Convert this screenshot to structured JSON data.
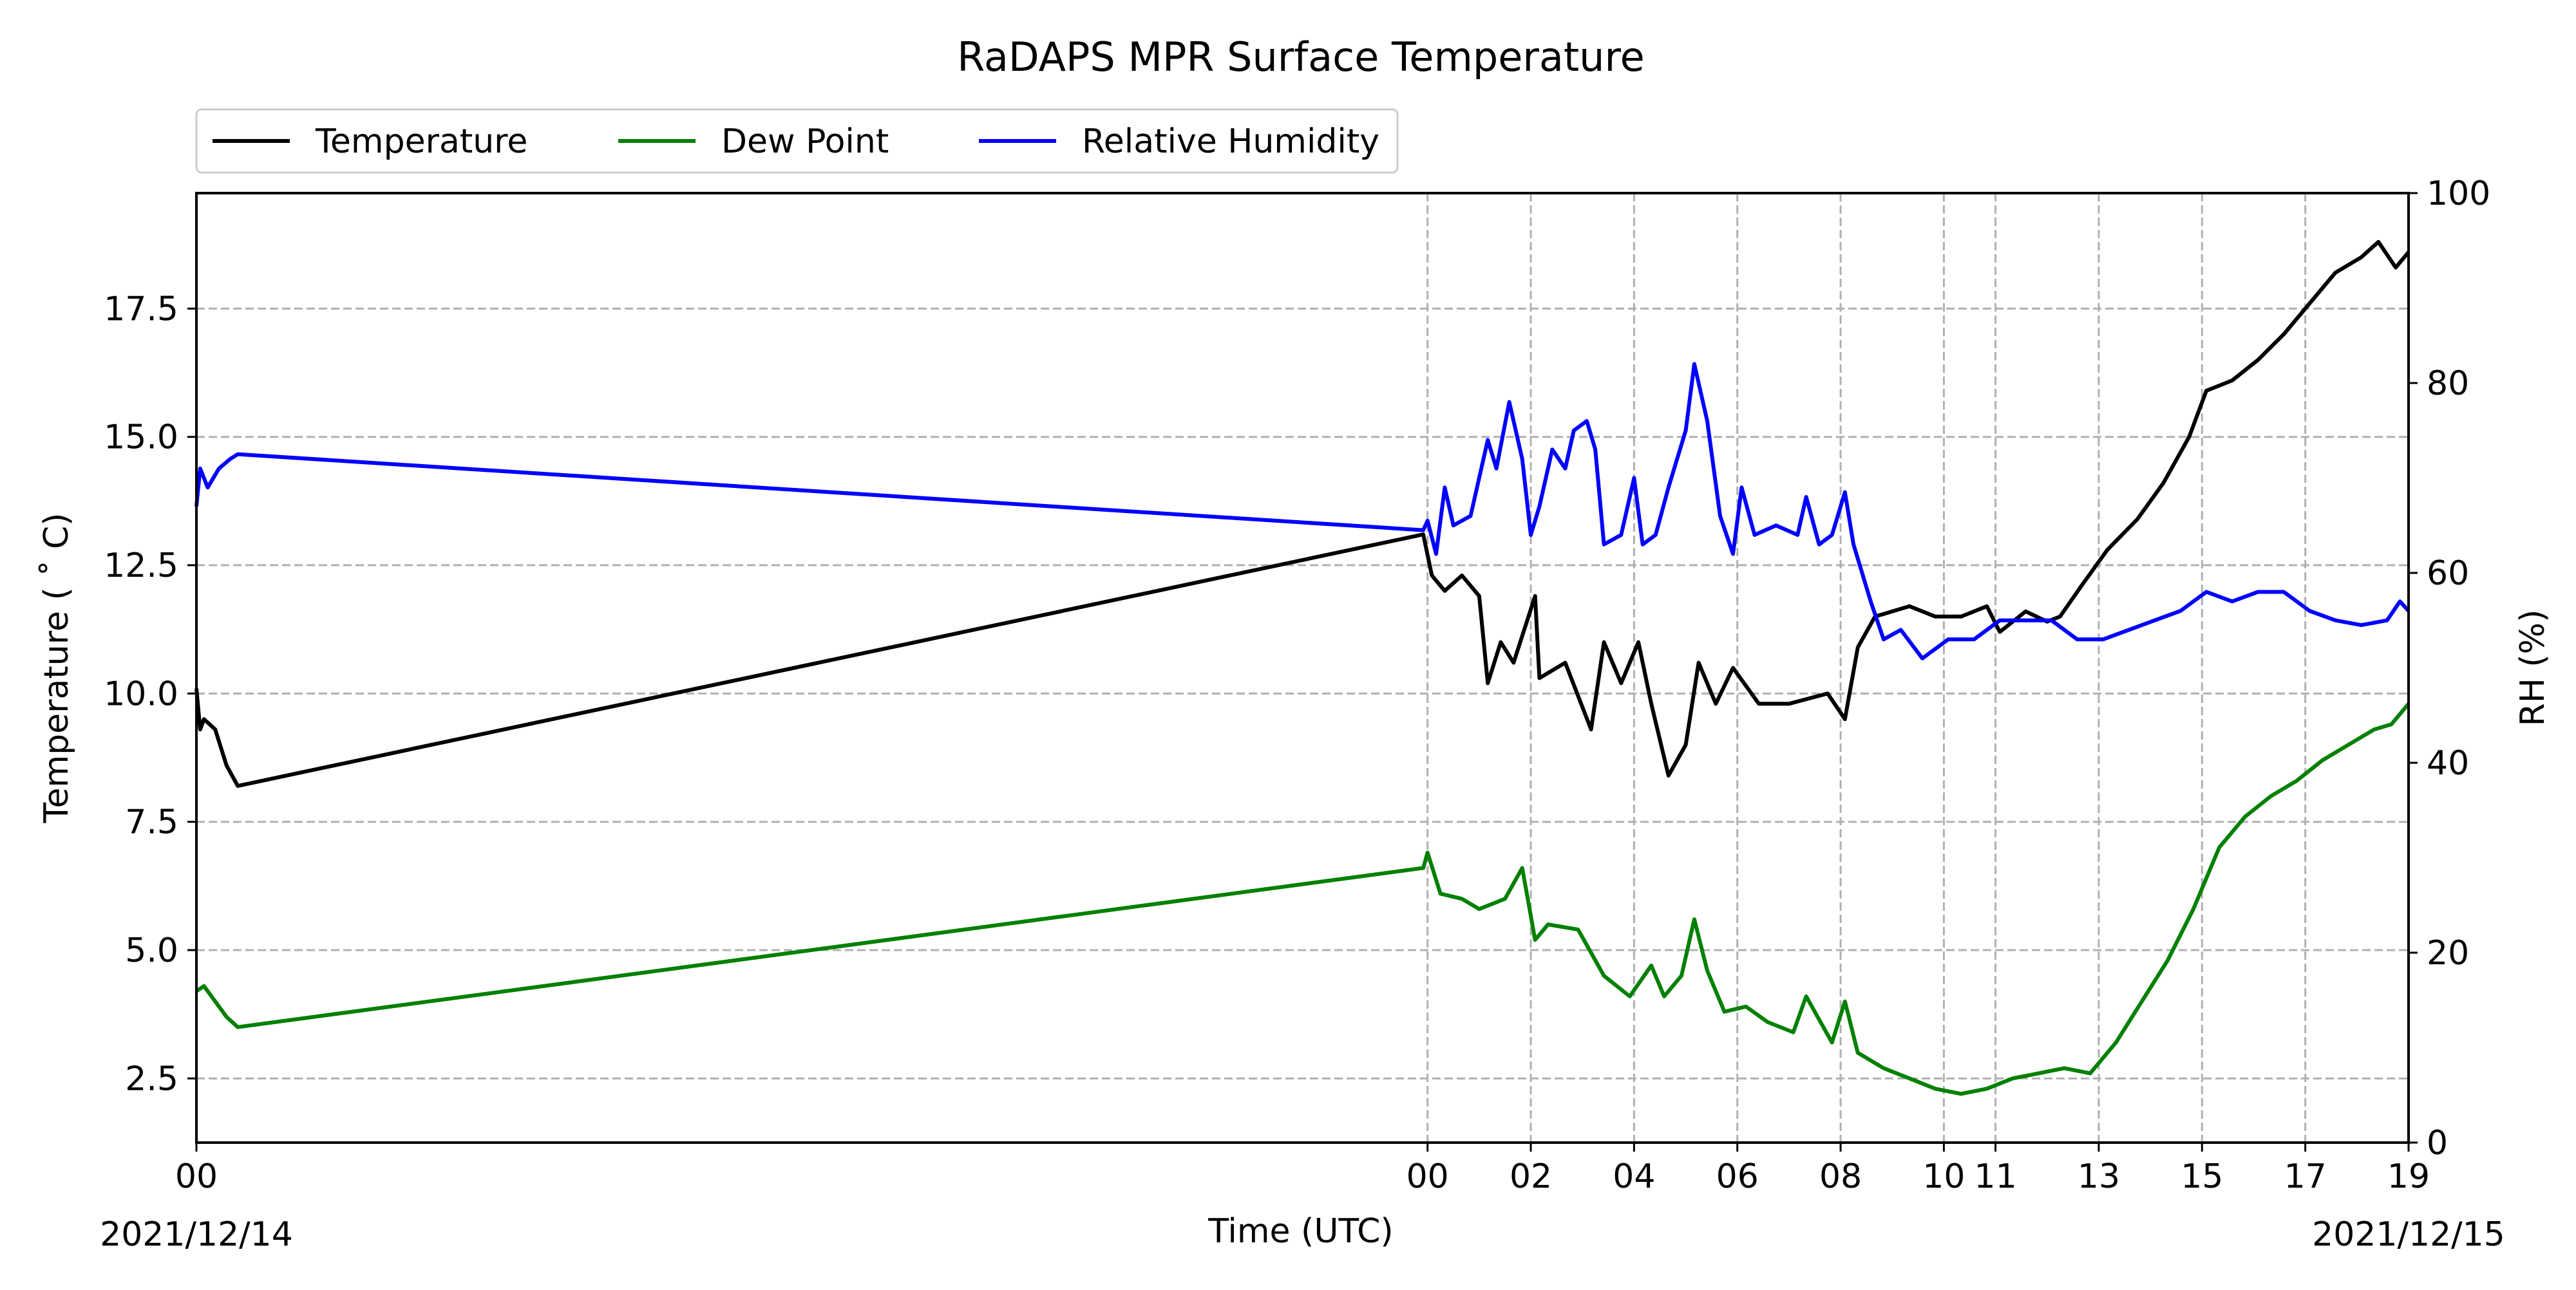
{
  "chart_data": {
    "type": "line",
    "title": "RaDAPS MPR Surface Temperature",
    "xlabel": "Time (UTC)",
    "ylabel_left": "Temperature ($^\\circ$C)",
    "ylabel_left_display": "Temperature ( ˚ C)",
    "ylabel_right": "RH (%)",
    "date_start_label": "2021/12/14",
    "date_end_label": "2021/12/15",
    "ylim_left": [
      1.25,
      19.75
    ],
    "ylim_right": [
      0,
      100
    ],
    "grid": true,
    "legend_position": "top-left, outside above plot",
    "x_ticks": [
      {
        "x": "2021-12-14 00:00",
        "label": "00"
      },
      {
        "x": "2021-12-15 00:00",
        "label": "00"
      },
      {
        "x": "2021-12-15 02:00",
        "label": "02"
      },
      {
        "x": "2021-12-15 04:00",
        "label": "04"
      },
      {
        "x": "2021-12-15 06:00",
        "label": "06"
      },
      {
        "x": "2021-12-15 08:00",
        "label": "08"
      },
      {
        "x": "2021-12-15 10:00",
        "label": "10"
      },
      {
        "x": "2021-12-15 11:00",
        "label": "11"
      },
      {
        "x": "2021-12-15 13:00",
        "label": "13"
      },
      {
        "x": "2021-12-15 15:00",
        "label": "15"
      },
      {
        "x": "2021-12-15 17:00",
        "label": "17"
      },
      {
        "x": "2021-12-15 19:00",
        "label": "19"
      }
    ],
    "y_ticks_left": [
      2.5,
      5.0,
      7.5,
      10.0,
      12.5,
      15.0,
      17.5
    ],
    "y_ticks_left_labels": [
      "2.5",
      "5.0",
      "7.5",
      "10.0",
      "12.5",
      "15.0",
      "17.5"
    ],
    "y_ticks_right": [
      0,
      20,
      40,
      60,
      80,
      100
    ],
    "y_ticks_right_labels": [
      "0",
      "20",
      "40",
      "60",
      "80",
      "100"
    ],
    "series": [
      {
        "name": "Temperature",
        "color": "#000000",
        "axis": "left",
        "points": [
          [
            "2021-12-14 00:00",
            10.1
          ],
          [
            "2021-12-14 00:05",
            9.3
          ],
          [
            "2021-12-14 00:10",
            9.5
          ],
          [
            "2021-12-14 00:25",
            9.3
          ],
          [
            "2021-12-14 00:40",
            8.6
          ],
          [
            "2021-12-14 00:55",
            8.2
          ],
          [
            "2021-12-14 23:55",
            13.1
          ],
          [
            "2021-12-15 00:05",
            12.3
          ],
          [
            "2021-12-15 00:20",
            12.0
          ],
          [
            "2021-12-15 00:40",
            12.3
          ],
          [
            "2021-12-15 01:00",
            11.9
          ],
          [
            "2021-12-15 01:10",
            10.2
          ],
          [
            "2021-12-15 01:25",
            11.0
          ],
          [
            "2021-12-15 01:40",
            10.6
          ],
          [
            "2021-12-15 02:05",
            11.9
          ],
          [
            "2021-12-15 02:10",
            10.3
          ],
          [
            "2021-12-15 02:40",
            10.6
          ],
          [
            "2021-12-15 03:10",
            9.3
          ],
          [
            "2021-12-15 03:25",
            11.0
          ],
          [
            "2021-12-15 03:45",
            10.2
          ],
          [
            "2021-12-15 04:05",
            11.0
          ],
          [
            "2021-12-15 04:20",
            9.8
          ],
          [
            "2021-12-15 04:40",
            8.4
          ],
          [
            "2021-12-15 05:00",
            9.0
          ],
          [
            "2021-12-15 05:15",
            10.6
          ],
          [
            "2021-12-15 05:35",
            9.8
          ],
          [
            "2021-12-15 05:55",
            10.5
          ],
          [
            "2021-12-15 06:25",
            9.8
          ],
          [
            "2021-12-15 07:00",
            9.8
          ],
          [
            "2021-12-15 07:45",
            10.0
          ],
          [
            "2021-12-15 08:05",
            9.5
          ],
          [
            "2021-12-15 08:20",
            10.9
          ],
          [
            "2021-12-15 08:40",
            11.5
          ],
          [
            "2021-12-15 09:20",
            11.7
          ],
          [
            "2021-12-15 09:50",
            11.5
          ],
          [
            "2021-12-15 10:20",
            11.5
          ],
          [
            "2021-12-15 10:50",
            11.7
          ],
          [
            "2021-12-15 11:05",
            11.2
          ],
          [
            "2021-12-15 11:35",
            11.6
          ],
          [
            "2021-12-15 12:00",
            11.4
          ],
          [
            "2021-12-15 12:15",
            11.5
          ],
          [
            "2021-12-15 12:40",
            12.1
          ],
          [
            "2021-12-15 13:10",
            12.8
          ],
          [
            "2021-12-15 13:45",
            13.4
          ],
          [
            "2021-12-15 14:15",
            14.1
          ],
          [
            "2021-12-15 14:45",
            15.0
          ],
          [
            "2021-12-15 15:05",
            15.9
          ],
          [
            "2021-12-15 15:35",
            16.1
          ],
          [
            "2021-12-15 16:05",
            16.5
          ],
          [
            "2021-12-15 16:35",
            17.0
          ],
          [
            "2021-12-15 17:05",
            17.6
          ],
          [
            "2021-12-15 17:35",
            18.2
          ],
          [
            "2021-12-15 18:05",
            18.5
          ],
          [
            "2021-12-15 18:25",
            18.8
          ],
          [
            "2021-12-15 18:45",
            18.3
          ],
          [
            "2021-12-15 19:00",
            18.6
          ]
        ]
      },
      {
        "name": "Dew Point",
        "color": "#008000",
        "axis": "left",
        "points": [
          [
            "2021-12-14 00:00",
            4.2
          ],
          [
            "2021-12-14 00:10",
            4.3
          ],
          [
            "2021-12-14 00:25",
            4.0
          ],
          [
            "2021-12-14 00:40",
            3.7
          ],
          [
            "2021-12-14 00:55",
            3.5
          ],
          [
            "2021-12-14 23:55",
            6.6
          ],
          [
            "2021-12-15 00:00",
            6.9
          ],
          [
            "2021-12-15 00:15",
            6.1
          ],
          [
            "2021-12-15 00:40",
            6.0
          ],
          [
            "2021-12-15 01:00",
            5.8
          ],
          [
            "2021-12-15 01:30",
            6.0
          ],
          [
            "2021-12-15 01:50",
            6.6
          ],
          [
            "2021-12-15 02:05",
            5.2
          ],
          [
            "2021-12-15 02:20",
            5.5
          ],
          [
            "2021-12-15 02:55",
            5.4
          ],
          [
            "2021-12-15 03:25",
            4.5
          ],
          [
            "2021-12-15 03:55",
            4.1
          ],
          [
            "2021-12-15 04:20",
            4.7
          ],
          [
            "2021-12-15 04:35",
            4.1
          ],
          [
            "2021-12-15 04:55",
            4.5
          ],
          [
            "2021-12-15 05:10",
            5.6
          ],
          [
            "2021-12-15 05:25",
            4.6
          ],
          [
            "2021-12-15 05:45",
            3.8
          ],
          [
            "2021-12-15 06:10",
            3.9
          ],
          [
            "2021-12-15 06:35",
            3.6
          ],
          [
            "2021-12-15 07:05",
            3.4
          ],
          [
            "2021-12-15 07:20",
            4.1
          ],
          [
            "2021-12-15 07:50",
            3.2
          ],
          [
            "2021-12-15 08:05",
            4.0
          ],
          [
            "2021-12-15 08:20",
            3.0
          ],
          [
            "2021-12-15 08:50",
            2.7
          ],
          [
            "2021-12-15 09:20",
            2.5
          ],
          [
            "2021-12-15 09:50",
            2.3
          ],
          [
            "2021-12-15 10:20",
            2.2
          ],
          [
            "2021-12-15 10:50",
            2.3
          ],
          [
            "2021-12-15 11:20",
            2.5
          ],
          [
            "2021-12-15 11:50",
            2.6
          ],
          [
            "2021-12-15 12:20",
            2.7
          ],
          [
            "2021-12-15 12:50",
            2.6
          ],
          [
            "2021-12-15 13:20",
            3.2
          ],
          [
            "2021-12-15 13:50",
            4.0
          ],
          [
            "2021-12-15 14:20",
            4.8
          ],
          [
            "2021-12-15 14:50",
            5.8
          ],
          [
            "2021-12-15 15:20",
            7.0
          ],
          [
            "2021-12-15 15:50",
            7.6
          ],
          [
            "2021-12-15 16:20",
            8.0
          ],
          [
            "2021-12-15 16:50",
            8.3
          ],
          [
            "2021-12-15 17:20",
            8.7
          ],
          [
            "2021-12-15 17:50",
            9.0
          ],
          [
            "2021-12-15 18:20",
            9.3
          ],
          [
            "2021-12-15 18:40",
            9.4
          ],
          [
            "2021-12-15 19:00",
            9.8
          ]
        ]
      },
      {
        "name": "Relative Humidity",
        "color": "#0000ff",
        "axis": "right",
        "points": [
          [
            "2021-12-14 00:00",
            67
          ],
          [
            "2021-12-14 00:05",
            71
          ],
          [
            "2021-12-14 00:15",
            69
          ],
          [
            "2021-12-14 00:30",
            71
          ],
          [
            "2021-12-14 00:45",
            72
          ],
          [
            "2021-12-14 00:55",
            72.5
          ],
          [
            "2021-12-14 23:55",
            64.5
          ],
          [
            "2021-12-15 00:00",
            65.5
          ],
          [
            "2021-12-15 00:10",
            62
          ],
          [
            "2021-12-15 00:20",
            69
          ],
          [
            "2021-12-15 00:30",
            65
          ],
          [
            "2021-12-15 00:50",
            66
          ],
          [
            "2021-12-15 01:10",
            74
          ],
          [
            "2021-12-15 01:20",
            71
          ],
          [
            "2021-12-15 01:35",
            78
          ],
          [
            "2021-12-15 01:50",
            72
          ],
          [
            "2021-12-15 02:00",
            64
          ],
          [
            "2021-12-15 02:10",
            67
          ],
          [
            "2021-12-15 02:25",
            73
          ],
          [
            "2021-12-15 02:40",
            71
          ],
          [
            "2021-12-15 02:50",
            75
          ],
          [
            "2021-12-15 03:05",
            76
          ],
          [
            "2021-12-15 03:15",
            73
          ],
          [
            "2021-12-15 03:25",
            63
          ],
          [
            "2021-12-15 03:45",
            64
          ],
          [
            "2021-12-15 04:00",
            70
          ],
          [
            "2021-12-15 04:10",
            63
          ],
          [
            "2021-12-15 04:25",
            64
          ],
          [
            "2021-12-15 04:40",
            69
          ],
          [
            "2021-12-15 05:00",
            75
          ],
          [
            "2021-12-15 05:10",
            82
          ],
          [
            "2021-12-15 05:25",
            76
          ],
          [
            "2021-12-15 05:40",
            66
          ],
          [
            "2021-12-15 05:55",
            62
          ],
          [
            "2021-12-15 06:05",
            69
          ],
          [
            "2021-12-15 06:20",
            64
          ],
          [
            "2021-12-15 06:45",
            65
          ],
          [
            "2021-12-15 07:10",
            64
          ],
          [
            "2021-12-15 07:20",
            68
          ],
          [
            "2021-12-15 07:35",
            63
          ],
          [
            "2021-12-15 07:50",
            64
          ],
          [
            "2021-12-15 08:05",
            68.5
          ],
          [
            "2021-12-15 08:15",
            63
          ],
          [
            "2021-12-15 08:35",
            57
          ],
          [
            "2021-12-15 08:50",
            53
          ],
          [
            "2021-12-15 09:10",
            54
          ],
          [
            "2021-12-15 09:35",
            51
          ],
          [
            "2021-12-15 10:05",
            53
          ],
          [
            "2021-12-15 10:35",
            53
          ],
          [
            "2021-12-15 11:05",
            55
          ],
          [
            "2021-12-15 11:35",
            55
          ],
          [
            "2021-12-15 12:05",
            55
          ],
          [
            "2021-12-15 12:35",
            53
          ],
          [
            "2021-12-15 13:05",
            53
          ],
          [
            "2021-12-15 13:35",
            54
          ],
          [
            "2021-12-15 14:05",
            55
          ],
          [
            "2021-12-15 14:35",
            56
          ],
          [
            "2021-12-15 15:05",
            58
          ],
          [
            "2021-12-15 15:35",
            57
          ],
          [
            "2021-12-15 16:05",
            58
          ],
          [
            "2021-12-15 16:35",
            58
          ],
          [
            "2021-12-15 17:05",
            56
          ],
          [
            "2021-12-15 17:35",
            55
          ],
          [
            "2021-12-15 18:05",
            54.5
          ],
          [
            "2021-12-15 18:35",
            55
          ],
          [
            "2021-12-15 18:50",
            57
          ],
          [
            "2021-12-15 19:00",
            56
          ]
        ]
      }
    ]
  }
}
